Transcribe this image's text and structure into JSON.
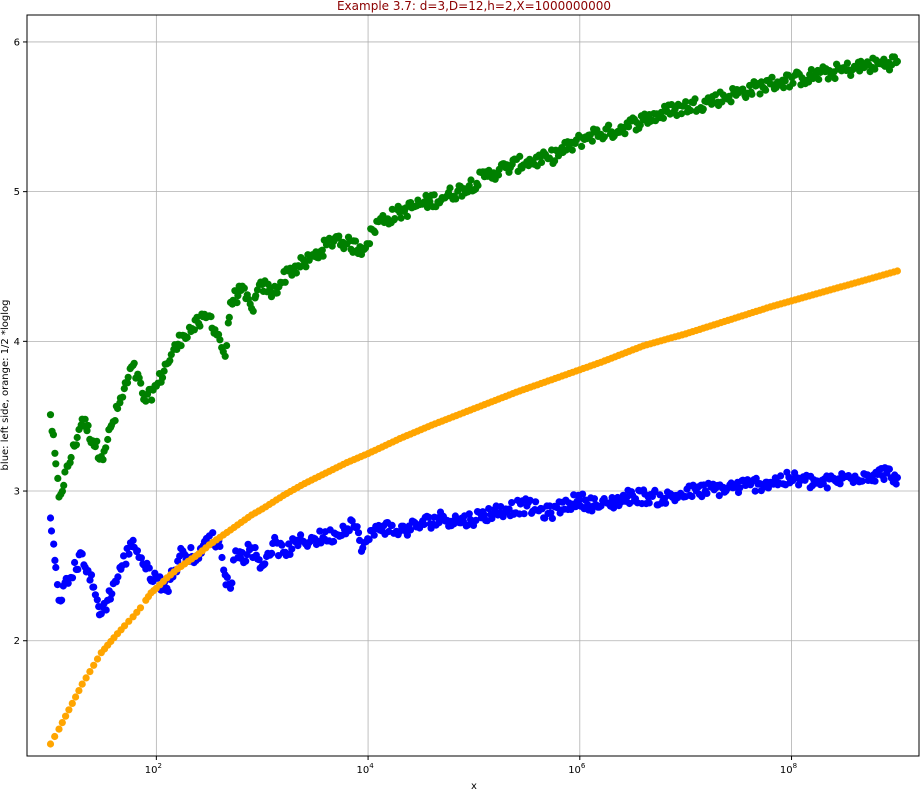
{
  "chart_data": {
    "type": "scatter",
    "title": "Example 3.7: d=3,D=12,h=2,X=1000000000",
    "xlabel": "x",
    "ylabel": "blue: left side, orange: 1/2 *loglog",
    "xscale": "log",
    "xlim": [
      6,
      1600000000
    ],
    "ylim": [
      1.23,
      6.18
    ],
    "x_ticks": [
      {
        "value": 100,
        "base": "10",
        "exp": "2"
      },
      {
        "value": 10000,
        "base": "10",
        "exp": "4"
      },
      {
        "value": 1000000,
        "base": "10",
        "exp": "6"
      },
      {
        "value": 100000000,
        "base": "10",
        "exp": "8"
      }
    ],
    "y_ticks": [
      2,
      3,
      4,
      5,
      6
    ],
    "grid": true,
    "colors": {
      "blue": "#0000ff",
      "orange": "#ffa500",
      "green": "#008000",
      "title": "#8b0000"
    },
    "series": [
      {
        "name": "orange: 1/2 *loglog",
        "color": "#ffa500",
        "log10x": [
          1.0,
          1.08,
          1.3,
          1.48,
          1.6,
          1.7,
          1.78,
          1.85,
          1.9,
          1.95,
          2.0,
          2.1,
          2.2,
          2.3,
          2.4,
          2.5,
          2.6,
          2.7,
          2.8,
          2.9,
          3.0,
          3.2,
          3.4,
          3.6,
          3.8,
          4.0,
          4.3,
          4.6,
          5.0,
          5.4,
          5.8,
          6.2,
          6.6,
          7.0,
          7.4,
          7.8,
          8.2,
          8.6,
          9.0
        ],
        "y": [
          1.31,
          1.41,
          1.71,
          1.92,
          2.02,
          2.1,
          2.16,
          2.22,
          2.27,
          2.32,
          2.35,
          2.42,
          2.48,
          2.53,
          2.58,
          2.64,
          2.69,
          2.74,
          2.79,
          2.84,
          2.88,
          2.97,
          3.05,
          3.12,
          3.19,
          3.25,
          3.35,
          3.44,
          3.55,
          3.66,
          3.76,
          3.86,
          3.97,
          4.05,
          4.14,
          4.23,
          4.31,
          4.39,
          4.47
        ]
      },
      {
        "name": "blue: left side",
        "color": "#0000ff",
        "log10x": [
          1.0,
          1.08,
          1.3,
          1.48,
          1.78,
          1.9,
          2.1,
          2.25,
          2.4,
          2.5,
          2.6,
          2.65,
          2.7,
          2.75,
          2.8,
          2.9,
          3.0,
          3.1,
          3.2,
          3.35,
          3.5,
          3.7,
          3.85,
          3.95,
          4.1,
          4.3,
          4.5,
          4.7,
          4.9,
          5.1,
          5.3,
          5.5,
          5.7,
          5.9,
          6.0,
          6.2,
          6.5,
          6.8,
          7.1,
          7.4,
          7.7,
          8.0,
          8.3,
          8.6,
          8.9,
          9.0
        ],
        "y": [
          2.82,
          2.27,
          2.58,
          2.18,
          2.67,
          2.48,
          2.35,
          2.6,
          2.55,
          2.7,
          2.63,
          2.44,
          2.35,
          2.6,
          2.55,
          2.62,
          2.5,
          2.65,
          2.59,
          2.66,
          2.68,
          2.71,
          2.8,
          2.62,
          2.77,
          2.73,
          2.78,
          2.82,
          2.8,
          2.84,
          2.88,
          2.9,
          2.85,
          2.92,
          2.94,
          2.9,
          2.97,
          2.95,
          3.0,
          3.02,
          3.05,
          3.08,
          3.05,
          3.1,
          3.12,
          3.09
        ]
      },
      {
        "name": "green",
        "color": "#008000",
        "log10x": [
          1.0,
          1.08,
          1.3,
          1.48,
          1.78,
          1.9,
          2.0,
          2.1,
          2.25,
          2.4,
          2.5,
          2.6,
          2.65,
          2.7,
          2.8,
          2.9,
          3.0,
          3.1,
          3.25,
          3.4,
          3.55,
          3.7,
          3.8,
          3.95,
          4.1,
          4.3,
          4.5,
          4.7,
          4.9,
          5.1,
          5.3,
          5.5,
          5.7,
          5.9,
          6.1,
          6.3,
          6.6,
          6.9,
          7.2,
          7.5,
          7.8,
          8.1,
          8.4,
          8.7,
          9.0
        ],
        "y": [
          3.51,
          2.96,
          3.48,
          3.23,
          3.84,
          3.6,
          3.7,
          3.85,
          4.04,
          4.12,
          4.17,
          4.01,
          3.9,
          4.26,
          4.34,
          4.22,
          4.38,
          4.32,
          4.47,
          4.52,
          4.6,
          4.7,
          4.65,
          4.62,
          4.8,
          4.86,
          4.92,
          4.96,
          5.02,
          5.1,
          5.16,
          5.2,
          5.22,
          5.3,
          5.38,
          5.4,
          5.48,
          5.55,
          5.6,
          5.66,
          5.72,
          5.76,
          5.8,
          5.84,
          5.87
        ]
      }
    ]
  }
}
